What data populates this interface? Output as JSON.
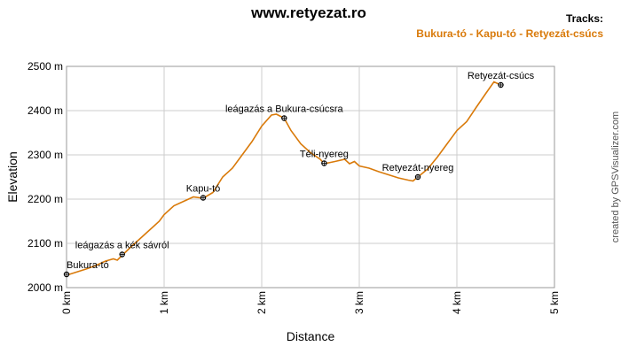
{
  "chart_data": {
    "type": "line",
    "title": "www.retyezat.ro",
    "tracks_label": "Tracks:",
    "track_name": "Bukura-tó - Kapu-tó - Retyezát-csúcs",
    "xlabel": "Distance",
    "ylabel": "Elevation",
    "xlim": [
      0,
      5
    ],
    "ylim": [
      2000,
      2500
    ],
    "x_ticks": [
      {
        "value": 0,
        "label": "0 km"
      },
      {
        "value": 1,
        "label": "1 km"
      },
      {
        "value": 2,
        "label": "2 km"
      },
      {
        "value": 3,
        "label": "3 km"
      },
      {
        "value": 4,
        "label": "4 km"
      },
      {
        "value": 5,
        "label": "5 km"
      }
    ],
    "y_ticks": [
      {
        "value": 2000,
        "label": "2000 m"
      },
      {
        "value": 2100,
        "label": "2100 m"
      },
      {
        "value": 2200,
        "label": "2200 m"
      },
      {
        "value": 2300,
        "label": "2300 m"
      },
      {
        "value": 2400,
        "label": "2400 m"
      },
      {
        "value": 2500,
        "label": "2500 m"
      }
    ],
    "grid": true,
    "series_color": "#d97a0a",
    "series": [
      {
        "name": "Bukura-tó - Kapu-tó - Retyezát-csúcs",
        "points": [
          [
            0.0,
            2028
          ],
          [
            0.1,
            2035
          ],
          [
            0.2,
            2042
          ],
          [
            0.3,
            2050
          ],
          [
            0.4,
            2060
          ],
          [
            0.48,
            2065
          ],
          [
            0.52,
            2062
          ],
          [
            0.57,
            2073
          ],
          [
            0.65,
            2090
          ],
          [
            0.75,
            2110
          ],
          [
            0.85,
            2130
          ],
          [
            0.95,
            2150
          ],
          [
            1.0,
            2165
          ],
          [
            1.1,
            2185
          ],
          [
            1.2,
            2195
          ],
          [
            1.3,
            2205
          ],
          [
            1.4,
            2202
          ],
          [
            1.5,
            2215
          ],
          [
            1.6,
            2250
          ],
          [
            1.7,
            2270
          ],
          [
            1.8,
            2300
          ],
          [
            1.9,
            2330
          ],
          [
            2.0,
            2365
          ],
          [
            2.1,
            2390
          ],
          [
            2.15,
            2392
          ],
          [
            2.23,
            2383
          ],
          [
            2.3,
            2355
          ],
          [
            2.4,
            2325
          ],
          [
            2.5,
            2305
          ],
          [
            2.6,
            2290
          ],
          [
            2.64,
            2280
          ],
          [
            2.75,
            2285
          ],
          [
            2.85,
            2290
          ],
          [
            2.9,
            2280
          ],
          [
            2.95,
            2285
          ],
          [
            3.0,
            2275
          ],
          [
            3.1,
            2270
          ],
          [
            3.2,
            2262
          ],
          [
            3.3,
            2255
          ],
          [
            3.4,
            2248
          ],
          [
            3.5,
            2243
          ],
          [
            3.55,
            2241
          ],
          [
            3.6,
            2250
          ],
          [
            3.7,
            2268
          ],
          [
            3.8,
            2295
          ],
          [
            3.9,
            2325
          ],
          [
            4.0,
            2355
          ],
          [
            4.1,
            2375
          ],
          [
            4.2,
            2408
          ],
          [
            4.3,
            2440
          ],
          [
            4.38,
            2465
          ],
          [
            4.45,
            2458
          ]
        ]
      }
    ],
    "waypoints": [
      {
        "x": 0.0,
        "y": 2030,
        "label": "Bukura-tó",
        "anchor": "start"
      },
      {
        "x": 0.57,
        "y": 2075,
        "label": "leágazás a kék sávról",
        "anchor": "middle"
      },
      {
        "x": 1.4,
        "y": 2203,
        "label": "Kapu-tó",
        "anchor": "middle"
      },
      {
        "x": 2.23,
        "y": 2383,
        "label": "leágazás a Bukura-csúcsra",
        "anchor": "middle"
      },
      {
        "x": 2.64,
        "y": 2281,
        "label": "Téli-nyereg",
        "anchor": "middle"
      },
      {
        "x": 3.6,
        "y": 2250,
        "label": "Retyezát-nyereg",
        "anchor": "middle"
      },
      {
        "x": 4.45,
        "y": 2458,
        "label": "Retyezát-csúcs",
        "anchor": "middle"
      }
    ],
    "credit": "created by GPSVisualizer.com"
  }
}
